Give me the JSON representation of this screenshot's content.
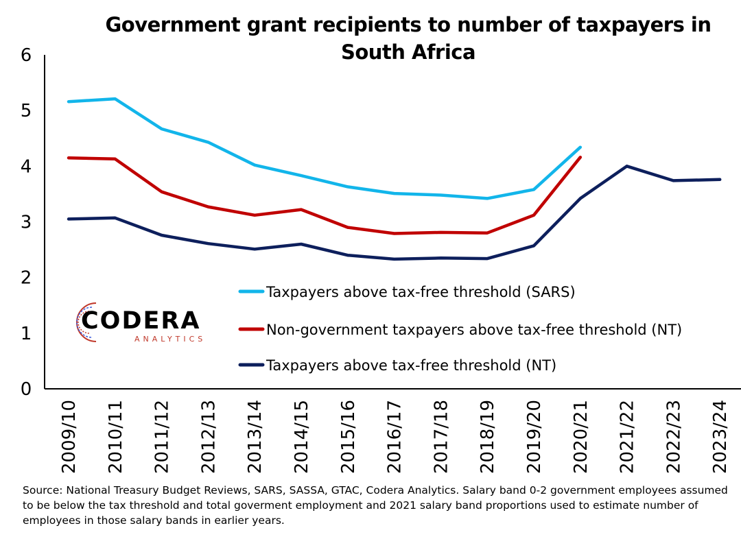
{
  "chart_data": {
    "type": "line",
    "title": "Government grant recipients to number of taxpayers in South Africa",
    "categories": [
      "2009/10",
      "2010/11",
      "2011/12",
      "2012/13",
      "2013/14",
      "2014/15",
      "2015/16",
      "2016/17",
      "2017/18",
      "2018/19",
      "2019/20",
      "2020/21",
      "2021/22",
      "2022/23",
      "2023/24"
    ],
    "ylim": [
      0,
      6
    ],
    "yticks": [
      "0",
      "1",
      "2",
      "3",
      "4",
      "5",
      "6"
    ],
    "grid": false,
    "legend_position": "bottom-right inside plot",
    "series": [
      {
        "name": "Taxpayers above tax-free threshold (SARS)",
        "color": "#12b5ea",
        "values": [
          5.16,
          5.21,
          4.67,
          4.43,
          4.02,
          3.83,
          3.63,
          3.51,
          3.48,
          3.42,
          3.58,
          4.34,
          null,
          null,
          null
        ]
      },
      {
        "name": "Non-government taxpayers above tax-free threshold (NT)",
        "color": "#c00000",
        "values": [
          4.15,
          4.13,
          3.54,
          3.27,
          3.12,
          3.22,
          2.9,
          2.79,
          2.81,
          2.8,
          3.12,
          4.16,
          null,
          null,
          null
        ]
      },
      {
        "name": "Taxpayers above tax-free threshold (NT)",
        "color": "#0d1f5c",
        "values": [
          3.05,
          3.07,
          2.76,
          2.61,
          2.51,
          2.6,
          2.4,
          2.33,
          2.35,
          2.34,
          2.57,
          3.42,
          4.0,
          3.74,
          3.76
        ]
      }
    ]
  },
  "logo": {
    "name": "CODERA",
    "sub": "ANALYTICS"
  },
  "source_note": "Source: National Treasury Budget Reviews, SARS, SASSA, GTAC, Codera Analytics. Salary band 0-2 government employees assumed to be below the tax threshold and total goverment employment and 2021 salary band proportions used to estimate number of employees in those salary bands in earlier years."
}
